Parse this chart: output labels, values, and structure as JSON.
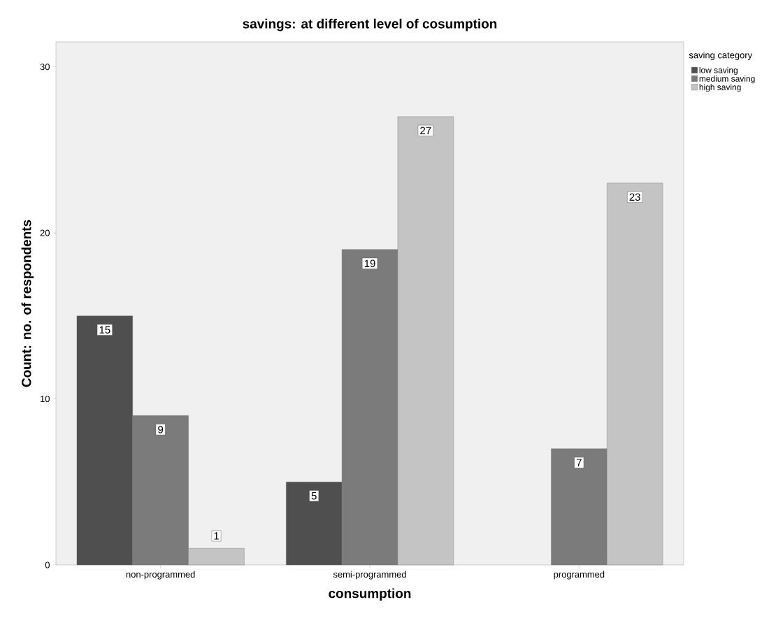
{
  "chart_data": {
    "type": "bar",
    "title": "savings: at different level of cosumption",
    "xlabel": "consumption",
    "ylabel": "Count: no. of respondents",
    "legend_title": "saving category",
    "categories": [
      "non-programmed",
      "semi-programmed",
      "programmed"
    ],
    "series": [
      {
        "name": "low saving",
        "color": "#4f4f4f",
        "values": [
          15,
          5,
          null
        ]
      },
      {
        "name": "medium saving",
        "color": "#7b7b7b",
        "values": [
          9,
          19,
          7
        ]
      },
      {
        "name": "high saving",
        "color": "#c4c4c4",
        "values": [
          1,
          27,
          23
        ]
      }
    ],
    "ylim": [
      0,
      31.5
    ],
    "yticks": [
      0,
      10,
      20,
      30
    ],
    "data_labels": true,
    "legend": "top right",
    "grid": false
  }
}
